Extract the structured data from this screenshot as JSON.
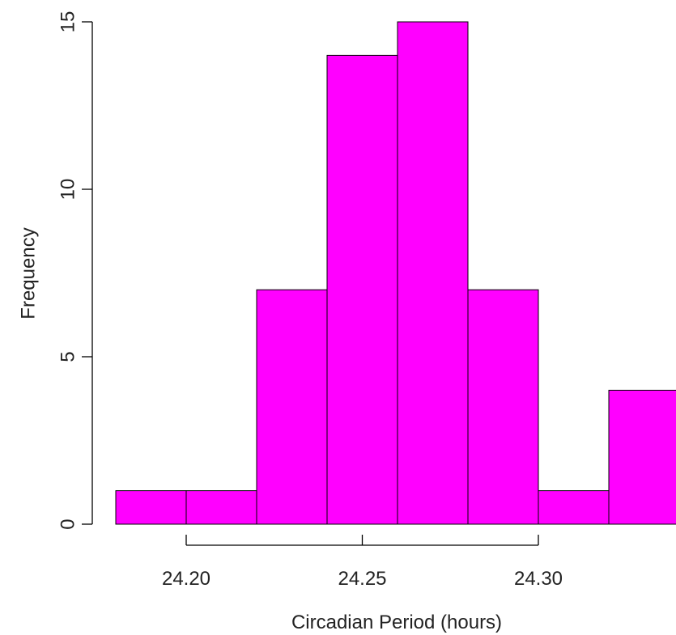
{
  "chart_data": {
    "type": "bar",
    "subtype": "histogram",
    "title": "",
    "xlabel": "Circadian Period (hours)",
    "ylabel": "Frequency",
    "bin_edges": [
      24.18,
      24.2,
      24.22,
      24.24,
      24.26,
      24.28,
      24.3,
      24.32,
      24.34
    ],
    "values": [
      1,
      1,
      7,
      14,
      15,
      7,
      1,
      4
    ],
    "xlim": [
      24.18,
      24.34
    ],
    "ylim": [
      0,
      15
    ],
    "x_ticks": [
      24.2,
      24.25,
      24.3
    ],
    "x_tick_labels": [
      "24.20",
      "24.25",
      "24.30"
    ],
    "y_ticks": [
      0,
      5,
      10,
      15
    ],
    "y_tick_labels": [
      "0",
      "5",
      "10",
      "15"
    ],
    "bar_color": "#ff00ff",
    "grid": false,
    "legend": "none"
  }
}
